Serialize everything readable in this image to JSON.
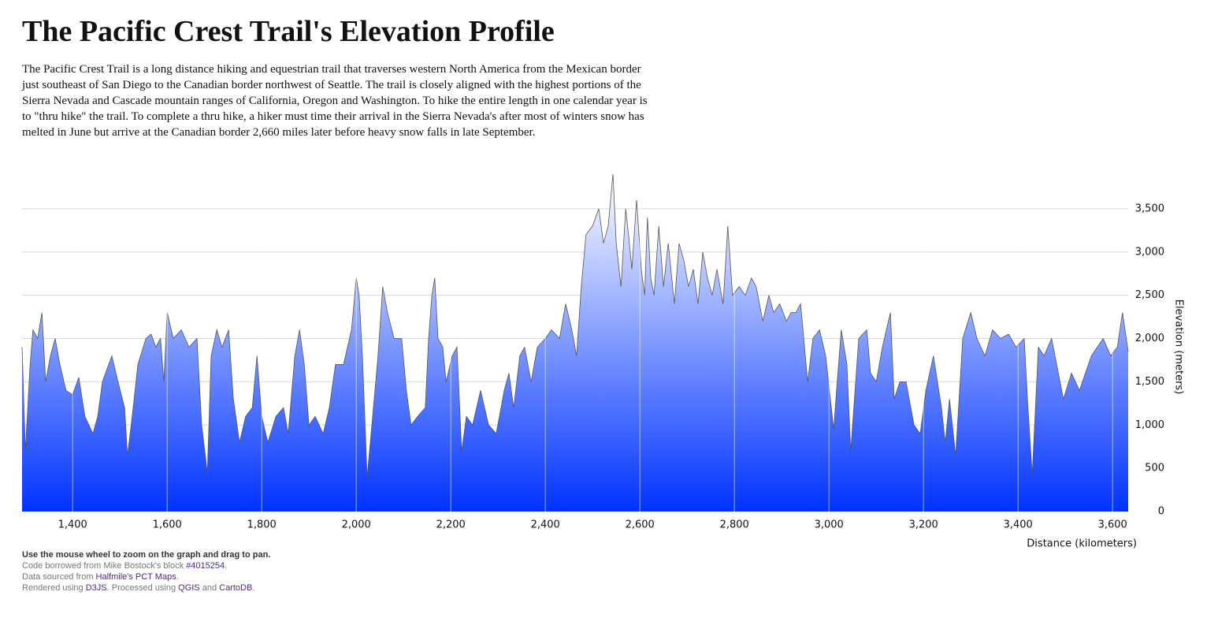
{
  "header": {
    "title": "The Pacific Crest Trail's Elevation Profile",
    "description": "The Pacific Crest Trail is a long distance hiking and equestrian trail that traverses western North America from the Mexican border just southeast of San Diego to the Canadian border northwest of Seattle. The trail is closely aligned with the highest portions of the Sierra Nevada and Cascade mountain ranges of California, Oregon and Washington. To hike the entire length in one calendar year is to \"thru hike\" the trail. To complete a thru hike, a hiker must time their arrival in the Sierra Nevada's after most of winters snow has melted in June but arrive at the Canadian border 2,660 miles later before heavy snow falls in late September."
  },
  "chart_data": {
    "type": "area",
    "x_label": "Distance (kilometers)",
    "y_label": "Elevation (meters)",
    "color": "#0033ff",
    "line_color": "#555555",
    "grid": true,
    "xlim": [
      1293,
      3633
    ],
    "ylim": [
      0,
      3900
    ],
    "xticks": [
      {
        "value": 1400,
        "label": "1,400"
      },
      {
        "value": 1600,
        "label": "1,600"
      },
      {
        "value": 1800,
        "label": "1,800"
      },
      {
        "value": 2000,
        "label": "2,000"
      },
      {
        "value": 2200,
        "label": "2,200"
      },
      {
        "value": 2400,
        "label": "2,400"
      },
      {
        "value": 2600,
        "label": "2,600"
      },
      {
        "value": 2800,
        "label": "2,800"
      },
      {
        "value": 3000,
        "label": "3,000"
      },
      {
        "value": 3200,
        "label": "3,200"
      },
      {
        "value": 3400,
        "label": "3,400"
      },
      {
        "value": 3600,
        "label": "3,600"
      }
    ],
    "yticks": [
      0,
      500,
      {
        "value": 1000,
        "label": "1,000"
      },
      {
        "value": 1500,
        "label": "1,500"
      },
      {
        "value": 2000,
        "label": "2,000"
      },
      {
        "value": 2500,
        "label": "2,500"
      },
      {
        "value": 3000,
        "label": "3,000"
      },
      {
        "value": 3500,
        "label": "3,500"
      }
    ],
    "x": [
      1293,
      1300,
      1310,
      1316,
      1326,
      1335,
      1343,
      1353,
      1363,
      1373,
      1386,
      1400,
      1413,
      1426,
      1443,
      1453,
      1463,
      1483,
      1496,
      1510,
      1516,
      1526,
      1538,
      1555,
      1566,
      1576,
      1586,
      1593,
      1600,
      1613,
      1630,
      1646,
      1663,
      1673,
      1685,
      1693,
      1705,
      1716,
      1730,
      1740,
      1753,
      1766,
      1780,
      1790,
      1800,
      1813,
      1830,
      1846,
      1856,
      1870,
      1880,
      1890,
      1900,
      1913,
      1930,
      1943,
      1956,
      1973,
      1990,
      2000,
      2006,
      2013,
      2023,
      2033,
      2046,
      2056,
      2066,
      2080,
      2096,
      2106,
      2116,
      2130,
      2146,
      2153,
      2160,
      2166,
      2173,
      2183,
      2190,
      2203,
      2213,
      2223,
      2233,
      2246,
      2263,
      2280,
      2296,
      2313,
      2323,
      2333,
      2346,
      2356,
      2370,
      2383,
      2400,
      2413,
      2430,
      2443,
      2456,
      2466,
      2476,
      2486,
      2500,
      2513,
      2523,
      2533,
      2543,
      2550,
      2560,
      2570,
      2576,
      2583,
      2593,
      2603,
      2610,
      2616,
      2623,
      2630,
      2640,
      2650,
      2660,
      2673,
      2683,
      2693,
      2703,
      2713,
      2723,
      2733,
      2743,
      2753,
      2763,
      2776,
      2786,
      2796,
      2810,
      2823,
      2836,
      2846,
      2860,
      2873,
      2883,
      2896,
      2910,
      2920,
      2930,
      2940,
      2955,
      2966,
      2980,
      2993,
      3010,
      3016,
      3026,
      3038,
      3046,
      3063,
      3080,
      3088,
      3100,
      3113,
      3130,
      3138,
      3150,
      3163,
      3180,
      3193,
      3205,
      3221,
      3238,
      3246,
      3255,
      3268,
      3283,
      3300,
      3313,
      3330,
      3346,
      3363,
      3380,
      3396,
      3413,
      3421,
      3430,
      3443,
      3455,
      3471,
      3496,
      3513,
      3530,
      3555,
      3580,
      3596,
      3610,
      3621,
      3633
    ],
    "values": [
      1900,
      700,
      1700,
      2100,
      2000,
      2300,
      1500,
      1800,
      2000,
      1700,
      1400,
      1350,
      1550,
      1100,
      900,
      1100,
      1500,
      1800,
      1500,
      1200,
      650,
      1100,
      1700,
      2000,
      2050,
      1900,
      2000,
      1500,
      2300,
      2000,
      2100,
      1900,
      2000,
      1000,
      450,
      1800,
      2100,
      1900,
      2100,
      1300,
      800,
      1100,
      1200,
      1800,
      1100,
      800,
      1100,
      1200,
      900,
      1800,
      2100,
      1700,
      1000,
      1100,
      900,
      1200,
      1700,
      1700,
      2100,
      2700,
      2500,
      1800,
      400,
      1000,
      1800,
      2600,
      2300,
      2000,
      2000,
      1400,
      1000,
      1100,
      1200,
      2000,
      2500,
      2700,
      2000,
      1900,
      1500,
      1800,
      1900,
      700,
      1100,
      1000,
      1400,
      1000,
      900,
      1400,
      1600,
      1200,
      1800,
      1900,
      1500,
      1900,
      2000,
      2100,
      2000,
      2400,
      2100,
      1800,
      2600,
      3200,
      3300,
      3500,
      3100,
      3300,
      3900,
      3100,
      2600,
      3500,
      3200,
      2800,
      3600,
      2800,
      2500,
      3400,
      2700,
      2500,
      3300,
      2600,
      3100,
      2400,
      3100,
      2900,
      2600,
      2800,
      2400,
      3000,
      2700,
      2500,
      2800,
      2400,
      3300,
      2500,
      2600,
      2500,
      2700,
      2600,
      2200,
      2500,
      2300,
      2400,
      2200,
      2300,
      2300,
      2400,
      1500,
      2000,
      2100,
      1800,
      950,
      1400,
      2100,
      1700,
      700,
      2000,
      2100,
      1600,
      1500,
      1900,
      2300,
      1300,
      1500,
      1500,
      1000,
      900,
      1400,
      1800,
      1200,
      800,
      1300,
      650,
      2000,
      2300,
      2000,
      1800,
      2100,
      2000,
      2050,
      1900,
      2000,
      1200,
      430,
      1900,
      1800,
      2000,
      1300,
      1600,
      1400,
      1800,
      2000,
      1800,
      1900,
      2300,
      1850
    ]
  },
  "footer": {
    "instruction": "Use the mouse wheel to zoom on the graph and drag to pan.",
    "credits": [
      [
        "Code borrowed from Mike Bostock's block ",
        "#4015254",
        "."
      ],
      [
        "Data sourced from ",
        "Halfmile's PCT Maps",
        "."
      ],
      [
        "Rendered using ",
        "D3JS",
        ". Processed using ",
        "QGIS",
        " and ",
        "CartoDB",
        "."
      ]
    ]
  }
}
